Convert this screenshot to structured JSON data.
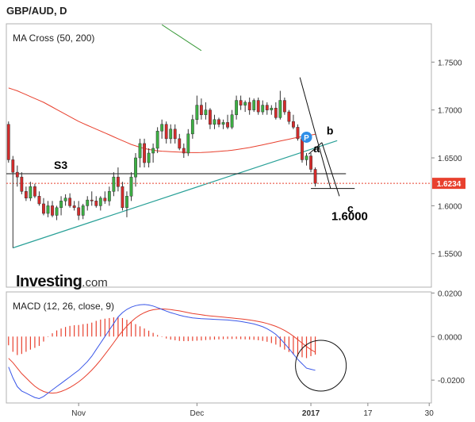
{
  "title": "GBP/AUD, D",
  "logo": {
    "brand": "Investing",
    "suffix": ".com"
  },
  "chart_data": {
    "type": "candlestick",
    "price_panel": {
      "indicator_label": "MA Cross (50, 200)",
      "ylim": [
        1.515,
        1.79
      ],
      "y_ticks": [
        "1.7500",
        "1.7000",
        "1.6500",
        "1.6000",
        "1.5500"
      ],
      "y_tick_values": [
        1.75,
        1.7,
        1.65,
        1.6,
        1.55
      ],
      "last_price": {
        "label": "1.6234",
        "value": 1.6234,
        "color": "#e8402e"
      },
      "annotations": {
        "s3": {
          "label": "S3",
          "price": 1.6335
        },
        "target": {
          "label": "1.6000",
          "price": 1.618
        },
        "wave_a": "a",
        "wave_b": "b",
        "wave_c": "c"
      },
      "ma50_color": "#e8402e",
      "ma200_color": "#3a9a3a",
      "up_color": "#3cb043",
      "down_color": "#d62b2b",
      "trendline_color": "#2aa198",
      "candles": [
        [
          1.685,
          1.688,
          1.645,
          1.648
        ],
        [
          1.648,
          1.652,
          1.556,
          1.635
        ],
        [
          1.635,
          1.642,
          1.62,
          1.63
        ],
        [
          1.63,
          1.635,
          1.612,
          1.615
        ],
        [
          1.615,
          1.62,
          1.605,
          1.608
        ],
        [
          1.608,
          1.625,
          1.605,
          1.62
        ],
        [
          1.62,
          1.623,
          1.608,
          1.61
        ],
        [
          1.61,
          1.615,
          1.6,
          1.602
        ],
        [
          1.602,
          1.608,
          1.59,
          1.592
        ],
        [
          1.592,
          1.605,
          1.588,
          1.6
        ],
        [
          1.6,
          1.605,
          1.588,
          1.59
        ],
        [
          1.59,
          1.6,
          1.585,
          1.598
        ],
        [
          1.598,
          1.61,
          1.59,
          1.605
        ],
        [
          1.605,
          1.612,
          1.6,
          1.608
        ],
        [
          1.608,
          1.613,
          1.598,
          1.6
        ],
        [
          1.6,
          1.605,
          1.595,
          1.598
        ],
        [
          1.598,
          1.605,
          1.585,
          1.59
        ],
        [
          1.59,
          1.602,
          1.586,
          1.6
        ],
        [
          1.6,
          1.61,
          1.595,
          1.606
        ],
        [
          1.606,
          1.615,
          1.6,
          1.605
        ],
        [
          1.605,
          1.61,
          1.598,
          1.6
        ],
        [
          1.6,
          1.61,
          1.595,
          1.608
        ],
        [
          1.608,
          1.615,
          1.602,
          1.605
        ],
        [
          1.605,
          1.62,
          1.6,
          1.615
        ],
        [
          1.615,
          1.635,
          1.61,
          1.63
        ],
        [
          1.63,
          1.64,
          1.615,
          1.62
        ],
        [
          1.62,
          1.625,
          1.595,
          1.598
        ],
        [
          1.598,
          1.615,
          1.588,
          1.61
        ],
        [
          1.61,
          1.635,
          1.605,
          1.63
        ],
        [
          1.63,
          1.655,
          1.62,
          1.65
        ],
        [
          1.65,
          1.67,
          1.64,
          1.665
        ],
        [
          1.665,
          1.67,
          1.64,
          1.645
        ],
        [
          1.645,
          1.66,
          1.64,
          1.655
        ],
        [
          1.655,
          1.665,
          1.645,
          1.66
        ],
        [
          1.66,
          1.682,
          1.655,
          1.678
        ],
        [
          1.678,
          1.69,
          1.67,
          1.685
        ],
        [
          1.685,
          1.688,
          1.665,
          1.67
        ],
        [
          1.67,
          1.685,
          1.665,
          1.68
        ],
        [
          1.68,
          1.685,
          1.665,
          1.67
        ],
        [
          1.67,
          1.675,
          1.658,
          1.66
        ],
        [
          1.66,
          1.665,
          1.65,
          1.655
        ],
        [
          1.655,
          1.68,
          1.652,
          1.675
        ],
        [
          1.675,
          1.695,
          1.67,
          1.69
        ],
        [
          1.69,
          1.715,
          1.685,
          1.705
        ],
        [
          1.705,
          1.712,
          1.69,
          1.695
        ],
        [
          1.695,
          1.708,
          1.69,
          1.7
        ],
        [
          1.7,
          1.702,
          1.68,
          1.685
        ],
        [
          1.685,
          1.695,
          1.68,
          1.69
        ],
        [
          1.69,
          1.692,
          1.682,
          1.685
        ],
        [
          1.685,
          1.69,
          1.68,
          1.687
        ],
        [
          1.687,
          1.695,
          1.68,
          1.682
        ],
        [
          1.682,
          1.7,
          1.68,
          1.695
        ],
        [
          1.695,
          1.715,
          1.69,
          1.71
        ],
        [
          1.71,
          1.715,
          1.7,
          1.705
        ],
        [
          1.705,
          1.71,
          1.698,
          1.708
        ],
        [
          1.708,
          1.713,
          1.695,
          1.7
        ],
        [
          1.7,
          1.712,
          1.698,
          1.71
        ],
        [
          1.71,
          1.713,
          1.695,
          1.698
        ],
        [
          1.698,
          1.71,
          1.695,
          1.705
        ],
        [
          1.705,
          1.708,
          1.695,
          1.7
        ],
        [
          1.7,
          1.705,
          1.695,
          1.702
        ],
        [
          1.702,
          1.708,
          1.69,
          1.692
        ],
        [
          1.692,
          1.72,
          1.69,
          1.71
        ],
        [
          1.71,
          1.713,
          1.695,
          1.698
        ],
        [
          1.698,
          1.7,
          1.685,
          1.688
        ],
        [
          1.688,
          1.695,
          1.68,
          1.682
        ],
        [
          1.682,
          1.685,
          1.668,
          1.67
        ],
        [
          1.67,
          1.672,
          1.645,
          1.648
        ],
        [
          1.648,
          1.655,
          1.642,
          1.652
        ],
        [
          1.652,
          1.655,
          1.635,
          1.638
        ],
        [
          1.638,
          1.64,
          1.62,
          1.6234
        ]
      ],
      "ma50": [
        1.723,
        1.7215,
        1.72,
        1.718,
        1.716,
        1.714,
        1.712,
        1.71,
        1.708,
        1.7055,
        1.703,
        1.7005,
        1.698,
        1.6955,
        1.693,
        1.6905,
        1.688,
        1.686,
        1.684,
        1.682,
        1.68,
        1.678,
        1.676,
        1.674,
        1.672,
        1.67,
        1.668,
        1.666,
        1.664,
        1.6625,
        1.661,
        1.6598,
        1.6588,
        1.658,
        1.6574,
        1.657,
        1.6567,
        1.6565,
        1.6562,
        1.656,
        1.6558,
        1.6556,
        1.6555,
        1.6555,
        1.6556,
        1.6558,
        1.6561,
        1.6564,
        1.6567,
        1.6571,
        1.6575,
        1.658,
        1.6586,
        1.6593,
        1.66,
        1.6608,
        1.6617,
        1.6626,
        1.6636,
        1.6646,
        1.6656,
        1.6666,
        1.6676,
        1.6686,
        1.6695,
        1.6705,
        1.6715,
        1.6722,
        1.673,
        1.6738,
        1.6746
      ],
      "ma200": {
        "values": [
          1.789,
          1.786,
          1.783,
          1.78,
          1.777,
          1.774,
          1.771,
          1.768,
          1.765,
          1.762
        ],
        "start_index": 35
      },
      "trendline": {
        "start": [
          1,
          1.556
        ],
        "end": [
          75,
          1.668
        ]
      },
      "s3_line": {
        "start_index": 0,
        "end_index": 77,
        "price": 1.6335
      },
      "target_line": {
        "start_index": 69,
        "end_index": 79,
        "price": 1.618
      },
      "wave_lines": [
        {
          "start": [
            66.5,
            1.734
          ],
          "end": [
            73.5,
            1.618
          ]
        },
        {
          "start": [
            68.5,
            1.654
          ],
          "end": [
            71.5,
            1.666
          ]
        },
        {
          "start": [
            71.5,
            1.666
          ],
          "end": [
            75.5,
            1.61
          ]
        }
      ],
      "pivot_marker": {
        "label": "P",
        "index": 68,
        "price": 1.6716,
        "color": "#2f8fe8"
      }
    },
    "macd_panel": {
      "label": "MACD (12, 26, close, 9)",
      "ylim": [
        -0.0305,
        0.0205
      ],
      "y_ticks": [
        "0.0200",
        "0.0000",
        "-0.0200"
      ],
      "y_tick_values": [
        0.02,
        0.0,
        -0.02
      ],
      "macd_color": "#3a57e8",
      "signal_color": "#e8402e",
      "hist_color": "#e8402e",
      "macd": [
        -0.014,
        -0.019,
        -0.023,
        -0.025,
        -0.026,
        -0.027,
        -0.028,
        -0.0285,
        -0.0275,
        -0.026,
        -0.0245,
        -0.023,
        -0.0215,
        -0.02,
        -0.0185,
        -0.017,
        -0.0155,
        -0.0135,
        -0.0115,
        -0.009,
        -0.006,
        -0.003,
        0.0,
        0.003,
        0.006,
        0.009,
        0.011,
        0.0125,
        0.0135,
        0.0142,
        0.0146,
        0.0147,
        0.0145,
        0.014,
        0.0133,
        0.0125,
        0.0117,
        0.011,
        0.0104,
        0.0098,
        0.0093,
        0.0089,
        0.0086,
        0.0084,
        0.0082,
        0.0081,
        0.008,
        0.0079,
        0.0078,
        0.0077,
        0.0076,
        0.0074,
        0.0072,
        0.0069,
        0.0066,
        0.0062,
        0.0058,
        0.0052,
        0.0045,
        0.0036,
        0.0024,
        0.001,
        -0.001,
        -0.0032,
        -0.0055,
        -0.008,
        -0.0105,
        -0.0125,
        -0.0145,
        -0.015,
        -0.0155
      ],
      "signal": [
        -0.01,
        -0.012,
        -0.0145,
        -0.017,
        -0.019,
        -0.021,
        -0.0228,
        -0.0242,
        -0.0252,
        -0.0258,
        -0.026,
        -0.0258,
        -0.0252,
        -0.0244,
        -0.0234,
        -0.0222,
        -0.0208,
        -0.0192,
        -0.0174,
        -0.0154,
        -0.0132,
        -0.0108,
        -0.0082,
        -0.0055,
        -0.0028,
        0.0,
        0.0025,
        0.0048,
        0.0068,
        0.0085,
        0.0099,
        0.011,
        0.0118,
        0.0123,
        0.0126,
        0.0127,
        0.0126,
        0.0124,
        0.0121,
        0.0118,
        0.0114,
        0.011,
        0.0106,
        0.0103,
        0.01,
        0.0097,
        0.0095,
        0.0093,
        0.0091,
        0.0089,
        0.0087,
        0.0085,
        0.0083,
        0.0081,
        0.0079,
        0.0076,
        0.0073,
        0.0069,
        0.0065,
        0.006,
        0.0054,
        0.0047,
        0.0038,
        0.0028,
        0.0016,
        0.0002,
        -0.0014,
        -0.003,
        -0.0046,
        -0.006,
        -0.0072
      ],
      "circle": {
        "label": "",
        "index": 72,
        "value": -0.009
      }
    },
    "x_ticks": [
      {
        "label": "Nov",
        "index": 16,
        "bold": false
      },
      {
        "label": "Dec",
        "index": 43,
        "bold": false
      },
      {
        "label": "2017",
        "index": 69,
        "bold": true
      },
      {
        "label": "17",
        "index": 82,
        "bold": false
      },
      {
        "label": "30",
        "index": 96,
        "bold": false
      }
    ],
    "x_range": [
      0,
      97
    ]
  }
}
